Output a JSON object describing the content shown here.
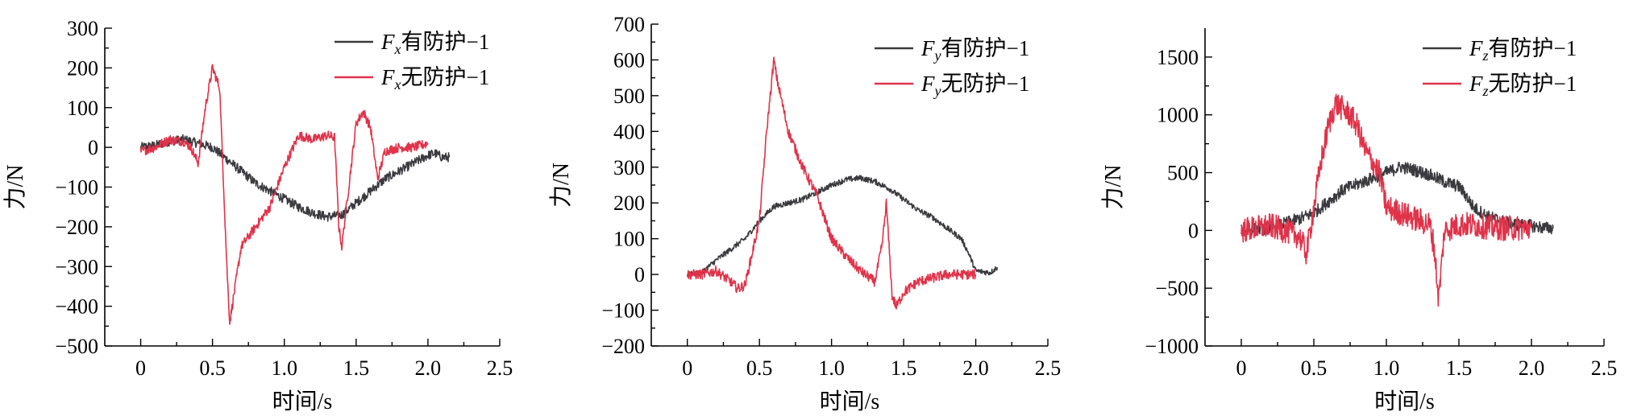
{
  "colors": {
    "protected": "#3a3a3f",
    "unprotected": "#e0334a"
  },
  "chart_data": [
    {
      "type": "line",
      "xlabel": "时间/s",
      "ylabel": "力/N",
      "xlim": [
        -0.25,
        2.5
      ],
      "ylim": [
        -500,
        300
      ],
      "xticks": [
        0,
        0.5,
        1.0,
        1.5,
        2.0,
        2.5
      ],
      "xtick_labels": [
        "0",
        "0.5",
        "1.0",
        "1.5",
        "2.0",
        "2.5"
      ],
      "yticks": [
        -500,
        -400,
        -300,
        -200,
        -100,
        0,
        100,
        200,
        300
      ],
      "ytick_labels": [
        "−500",
        "−400",
        "−300",
        "−200",
        "−100",
        "0",
        "100",
        "200",
        "300"
      ],
      "legend_position": "top-right",
      "series": [
        {
          "name_prefix": "F",
          "name_sub": "x",
          "name_suffix": "有防护−1",
          "color_key": "protected",
          "noise": 12,
          "x": [
            0,
            0.1,
            0.2,
            0.3,
            0.4,
            0.5,
            0.6,
            0.7,
            0.8,
            0.9,
            1.0,
            1.1,
            1.2,
            1.3,
            1.4,
            1.5,
            1.6,
            1.7,
            1.8,
            1.9,
            2.0,
            2.05,
            2.1,
            2.15
          ],
          "y": [
            0,
            5,
            15,
            20,
            10,
            0,
            -30,
            -60,
            -90,
            -110,
            -130,
            -150,
            -165,
            -175,
            -170,
            -140,
            -110,
            -80,
            -60,
            -40,
            -20,
            -15,
            -25,
            -25
          ]
        },
        {
          "name_prefix": "F",
          "name_sub": "x",
          "name_suffix": "无防护−1",
          "color_key": "unprotected",
          "noise": 12,
          "x": [
            0,
            0.1,
            0.2,
            0.3,
            0.35,
            0.4,
            0.45,
            0.5,
            0.55,
            0.6,
            0.62,
            0.7,
            0.8,
            0.9,
            1.0,
            1.1,
            1.2,
            1.3,
            1.35,
            1.38,
            1.4,
            1.5,
            1.55,
            1.6,
            1.65,
            1.7,
            1.8,
            1.9,
            2.0
          ],
          "y": [
            -10,
            0,
            20,
            15,
            0,
            -40,
            100,
            200,
            150,
            -300,
            -440,
            -250,
            -200,
            -150,
            -50,
            30,
            20,
            30,
            25,
            -200,
            -250,
            60,
            90,
            50,
            -80,
            -10,
            0,
            0,
            10
          ]
        }
      ]
    },
    {
      "type": "line",
      "xlabel": "时间/s",
      "ylabel": "力/N",
      "xlim": [
        -0.25,
        2.5
      ],
      "ylim": [
        -200,
        700
      ],
      "xticks": [
        0,
        0.5,
        1.0,
        1.5,
        2.0,
        2.5
      ],
      "xtick_labels": [
        "0",
        "0.5",
        "1.0",
        "1.5",
        "2.0",
        "2.5"
      ],
      "yticks": [
        -200,
        -100,
        0,
        100,
        200,
        300,
        400,
        500,
        600,
        700
      ],
      "ytick_labels": [
        "−200",
        "−100",
        "0",
        "100",
        "200",
        "300",
        "400",
        "500",
        "600",
        "700"
      ],
      "legend_position": "top-right",
      "series": [
        {
          "name_prefix": "F",
          "name_sub": "y",
          "name_suffix": "有防护−1",
          "color_key": "protected",
          "noise": 8,
          "x": [
            0,
            0.1,
            0.2,
            0.3,
            0.4,
            0.5,
            0.6,
            0.7,
            0.8,
            0.9,
            1.0,
            1.1,
            1.2,
            1.3,
            1.4,
            1.5,
            1.6,
            1.7,
            1.8,
            1.9,
            1.95,
            2.0,
            2.1,
            2.15
          ],
          "y": [
            0,
            5,
            40,
            70,
            100,
            150,
            190,
            200,
            210,
            230,
            250,
            265,
            270,
            260,
            240,
            210,
            180,
            160,
            130,
            100,
            60,
            10,
            5,
            20
          ]
        },
        {
          "name_prefix": "F",
          "name_sub": "y",
          "name_suffix": "无防护−1",
          "color_key": "unprotected",
          "noise": 14,
          "x": [
            0,
            0.1,
            0.2,
            0.3,
            0.35,
            0.4,
            0.5,
            0.55,
            0.6,
            0.62,
            0.7,
            0.8,
            0.9,
            1.0,
            1.1,
            1.2,
            1.3,
            1.35,
            1.38,
            1.42,
            1.45,
            1.5,
            1.6,
            1.7,
            1.8,
            1.9,
            2.0
          ],
          "y": [
            0,
            0,
            10,
            -20,
            -40,
            -30,
            150,
            400,
            600,
            550,
            400,
            300,
            220,
            100,
            50,
            10,
            -20,
            80,
            200,
            -60,
            -90,
            -50,
            -20,
            -10,
            0,
            0,
            0
          ]
        }
      ]
    },
    {
      "type": "line",
      "xlabel": "时间/s",
      "ylabel": "力/N",
      "xlim": [
        -0.25,
        2.5
      ],
      "ylim": [
        -1000,
        1750
      ],
      "xticks": [
        0,
        0.5,
        1.0,
        1.5,
        2.0,
        2.5
      ],
      "xtick_labels": [
        "0",
        "0.5",
        "1.0",
        "1.5",
        "2.0",
        "2.5"
      ],
      "yticks": [
        -1000,
        -500,
        0,
        500,
        1000,
        1500
      ],
      "ytick_labels": [
        "−1000",
        "−500",
        "0",
        "500",
        "1000",
        "1500"
      ],
      "legend_position": "top-right",
      "series": [
        {
          "name_prefix": "F",
          "name_sub": "z",
          "name_suffix": "有防护−1",
          "color_key": "protected",
          "noise": 55,
          "x": [
            0,
            0.2,
            0.3,
            0.4,
            0.5,
            0.6,
            0.7,
            0.8,
            0.9,
            1.0,
            1.1,
            1.2,
            1.3,
            1.4,
            1.5,
            1.55,
            1.6,
            1.7,
            1.8,
            1.9,
            2.0,
            2.1,
            2.15
          ],
          "y": [
            0,
            20,
            60,
            100,
            150,
            250,
            350,
            400,
            450,
            500,
            550,
            520,
            480,
            420,
            380,
            300,
            200,
            120,
            80,
            50,
            40,
            20,
            20
          ]
        },
        {
          "name_prefix": "F",
          "name_sub": "z",
          "name_suffix": "无防护−1",
          "color_key": "unprotected",
          "noise": 110,
          "x": [
            0,
            0.1,
            0.2,
            0.3,
            0.4,
            0.45,
            0.5,
            0.55,
            0.6,
            0.65,
            0.7,
            0.75,
            0.8,
            0.85,
            0.9,
            0.95,
            1.0,
            1.1,
            1.2,
            1.3,
            1.33,
            1.36,
            1.4,
            1.5,
            1.6,
            1.7,
            1.8,
            1.9,
            2.0
          ],
          "y": [
            0,
            20,
            40,
            0,
            -50,
            -200,
            200,
            600,
            900,
            1100,
            1050,
            1000,
            900,
            700,
            600,
            500,
            200,
            150,
            100,
            50,
            -150,
            -600,
            0,
            50,
            50,
            30,
            20,
            20,
            20
          ]
        }
      ]
    }
  ]
}
